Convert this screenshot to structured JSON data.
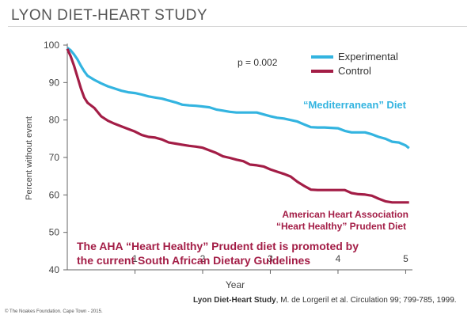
{
  "slide": {
    "title": "LYON DIET-HEART STUDY",
    "citation_bold": "Lyon Diet-Heart Study",
    "citation_rest": ", M. de Lorgeril et al.  Circulation 99; 799-785, 1999.",
    "copyright": "© The Noakes Foundation. Cape Town - 2015."
  },
  "chart_data": {
    "type": "line",
    "title": "",
    "xlabel": "Year",
    "ylabel": "Percent without event",
    "xlim": [
      0,
      5.1
    ],
    "ylim": [
      40,
      100
    ],
    "xticks": [
      1,
      2,
      3,
      4,
      5
    ],
    "yticks": [
      40,
      50,
      60,
      70,
      80,
      90,
      100
    ],
    "legend_position": "top-right",
    "p_value_text": "p = 0.002",
    "series": [
      {
        "name": "Experimental",
        "color": "#33b4e0",
        "x": [
          0,
          0.05,
          0.1,
          0.15,
          0.2,
          0.25,
          0.3,
          0.4,
          0.5,
          0.6,
          0.7,
          0.8,
          0.9,
          1.0,
          1.1,
          1.2,
          1.3,
          1.4,
          1.5,
          1.6,
          1.7,
          1.8,
          1.9,
          2.0,
          2.1,
          2.2,
          2.3,
          2.4,
          2.5,
          2.6,
          2.7,
          2.8,
          2.9,
          3.0,
          3.1,
          3.2,
          3.3,
          3.4,
          3.5,
          3.6,
          3.7,
          3.8,
          3.9,
          4.0,
          4.1,
          4.2,
          4.3,
          4.4,
          4.5,
          4.6,
          4.7,
          4.8,
          4.9,
          5.0,
          5.05
        ],
        "values": [
          99.3,
          98.6,
          97.5,
          96.2,
          94.5,
          93.0,
          91.8,
          90.7,
          89.8,
          89.0,
          88.4,
          87.8,
          87.4,
          87.2,
          86.8,
          86.3,
          86.0,
          85.7,
          85.2,
          84.7,
          84.1,
          83.9,
          83.8,
          83.6,
          83.4,
          82.8,
          82.5,
          82.2,
          82.0,
          82.0,
          82.0,
          82.0,
          81.5,
          81.0,
          80.6,
          80.4,
          80.0,
          79.6,
          78.8,
          78.1,
          78.0,
          78.0,
          77.9,
          77.8,
          77.1,
          76.7,
          76.7,
          76.7,
          76.2,
          75.5,
          75.0,
          74.2,
          74.0,
          73.2,
          72.5
        ]
      },
      {
        "name": "Control",
        "color": "#a31d46",
        "x": [
          0,
          0.05,
          0.1,
          0.15,
          0.2,
          0.25,
          0.3,
          0.4,
          0.5,
          0.6,
          0.7,
          0.8,
          0.9,
          1.0,
          1.1,
          1.2,
          1.3,
          1.4,
          1.5,
          1.6,
          1.7,
          1.8,
          1.9,
          2.0,
          2.1,
          2.2,
          2.3,
          2.4,
          2.5,
          2.6,
          2.7,
          2.8,
          2.9,
          3.0,
          3.1,
          3.2,
          3.3,
          3.4,
          3.5,
          3.6,
          3.7,
          3.8,
          3.9,
          4.0,
          4.1,
          4.2,
          4.3,
          4.4,
          4.5,
          4.6,
          4.7,
          4.8,
          4.9,
          5.0,
          5.05
        ],
        "values": [
          99.0,
          97.0,
          94.5,
          91.5,
          88.5,
          86.0,
          84.6,
          83.2,
          81.0,
          79.8,
          79.0,
          78.3,
          77.6,
          76.9,
          76.0,
          75.5,
          75.3,
          74.8,
          74.0,
          73.7,
          73.4,
          73.1,
          72.9,
          72.6,
          71.9,
          71.2,
          70.3,
          69.9,
          69.4,
          69.0,
          68.1,
          67.9,
          67.6,
          66.8,
          66.2,
          65.6,
          64.9,
          63.5,
          62.4,
          61.4,
          61.3,
          61.3,
          61.3,
          61.3,
          61.3,
          60.5,
          60.2,
          60.1,
          59.8,
          59.0,
          58.3,
          58.0,
          58.0,
          58.0,
          58.0
        ]
      }
    ],
    "annotations": [
      {
        "id": "mediterranean",
        "text": "“Mediterranean”  Diet",
        "color": "#33b4e0"
      },
      {
        "id": "aha_line1",
        "text": "American Heart Association",
        "color": "#a31d46"
      },
      {
        "id": "aha_line2",
        "text": "“Heart Healthy” Prudent Diet",
        "color": "#a31d46"
      },
      {
        "id": "promo_line1",
        "text": "The AHA “Heart Healthy” Prudent diet is promoted by",
        "color": "#a31d46"
      },
      {
        "id": "promo_line2",
        "text": "the current South African Dietary Guidelines",
        "color": "#a31d46"
      }
    ]
  }
}
